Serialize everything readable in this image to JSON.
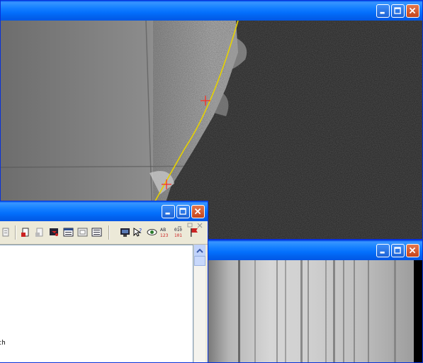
{
  "windows": {
    "image_top": {
      "controls": [
        "minimize",
        "maximize",
        "close"
      ]
    },
    "output_panel": {
      "controls": [
        "minimize",
        "maximize",
        "close"
      ],
      "inner_controls": [
        "_",
        "restore",
        "x"
      ],
      "text_line": "th",
      "toolbar_icons": [
        "doc-icon",
        "doc-gray-icon",
        "export-icon",
        "doc-new-icon",
        "doc-copy-icon",
        "table-icon",
        "table2-icon",
        "grid-icon",
        "monitor-icon",
        "help-icon",
        "eye-icon",
        "ab123-icon",
        "binary-icon",
        "flag-icon"
      ]
    },
    "spectrum": {
      "controls": [
        "minimize",
        "maximize",
        "close"
      ]
    }
  },
  "colors": {
    "title_blue": "#0a5ce8",
    "fit_line": "#e6d200",
    "marker": "#ff2a1e"
  }
}
